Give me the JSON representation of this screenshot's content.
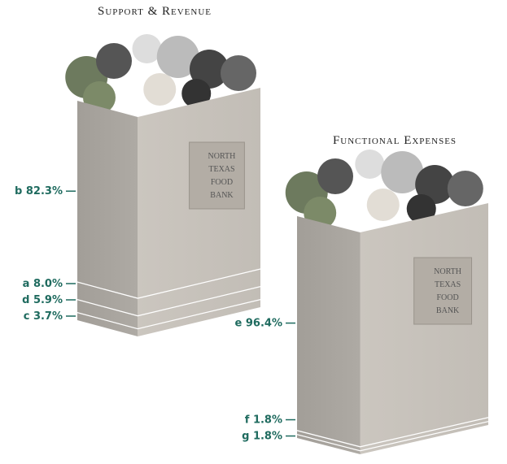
{
  "chart_data": [
    {
      "type": "stacked-bag",
      "title": "Support & Revenue",
      "categories": [
        "b",
        "a",
        "d",
        "c"
      ],
      "values": [
        82.3,
        8.0,
        5.9,
        3.7
      ],
      "value_labels": [
        "82.3%",
        "8.0%",
        "5.9%",
        "3.7%"
      ],
      "annotations": [
        "NORTH",
        "TEXAS",
        "FOOD",
        "BANK"
      ],
      "color": "#1f6b5f"
    },
    {
      "type": "stacked-bag",
      "title": "Functional Expenses",
      "categories": [
        "e",
        "f",
        "g"
      ],
      "values": [
        96.4,
        1.8,
        1.8
      ],
      "value_labels": [
        "96.4%",
        "1.8%",
        "1.8%"
      ],
      "annotations": [
        "NORTH",
        "TEXAS",
        "FOOD",
        "BANK"
      ],
      "color": "#1f6b5f"
    }
  ]
}
